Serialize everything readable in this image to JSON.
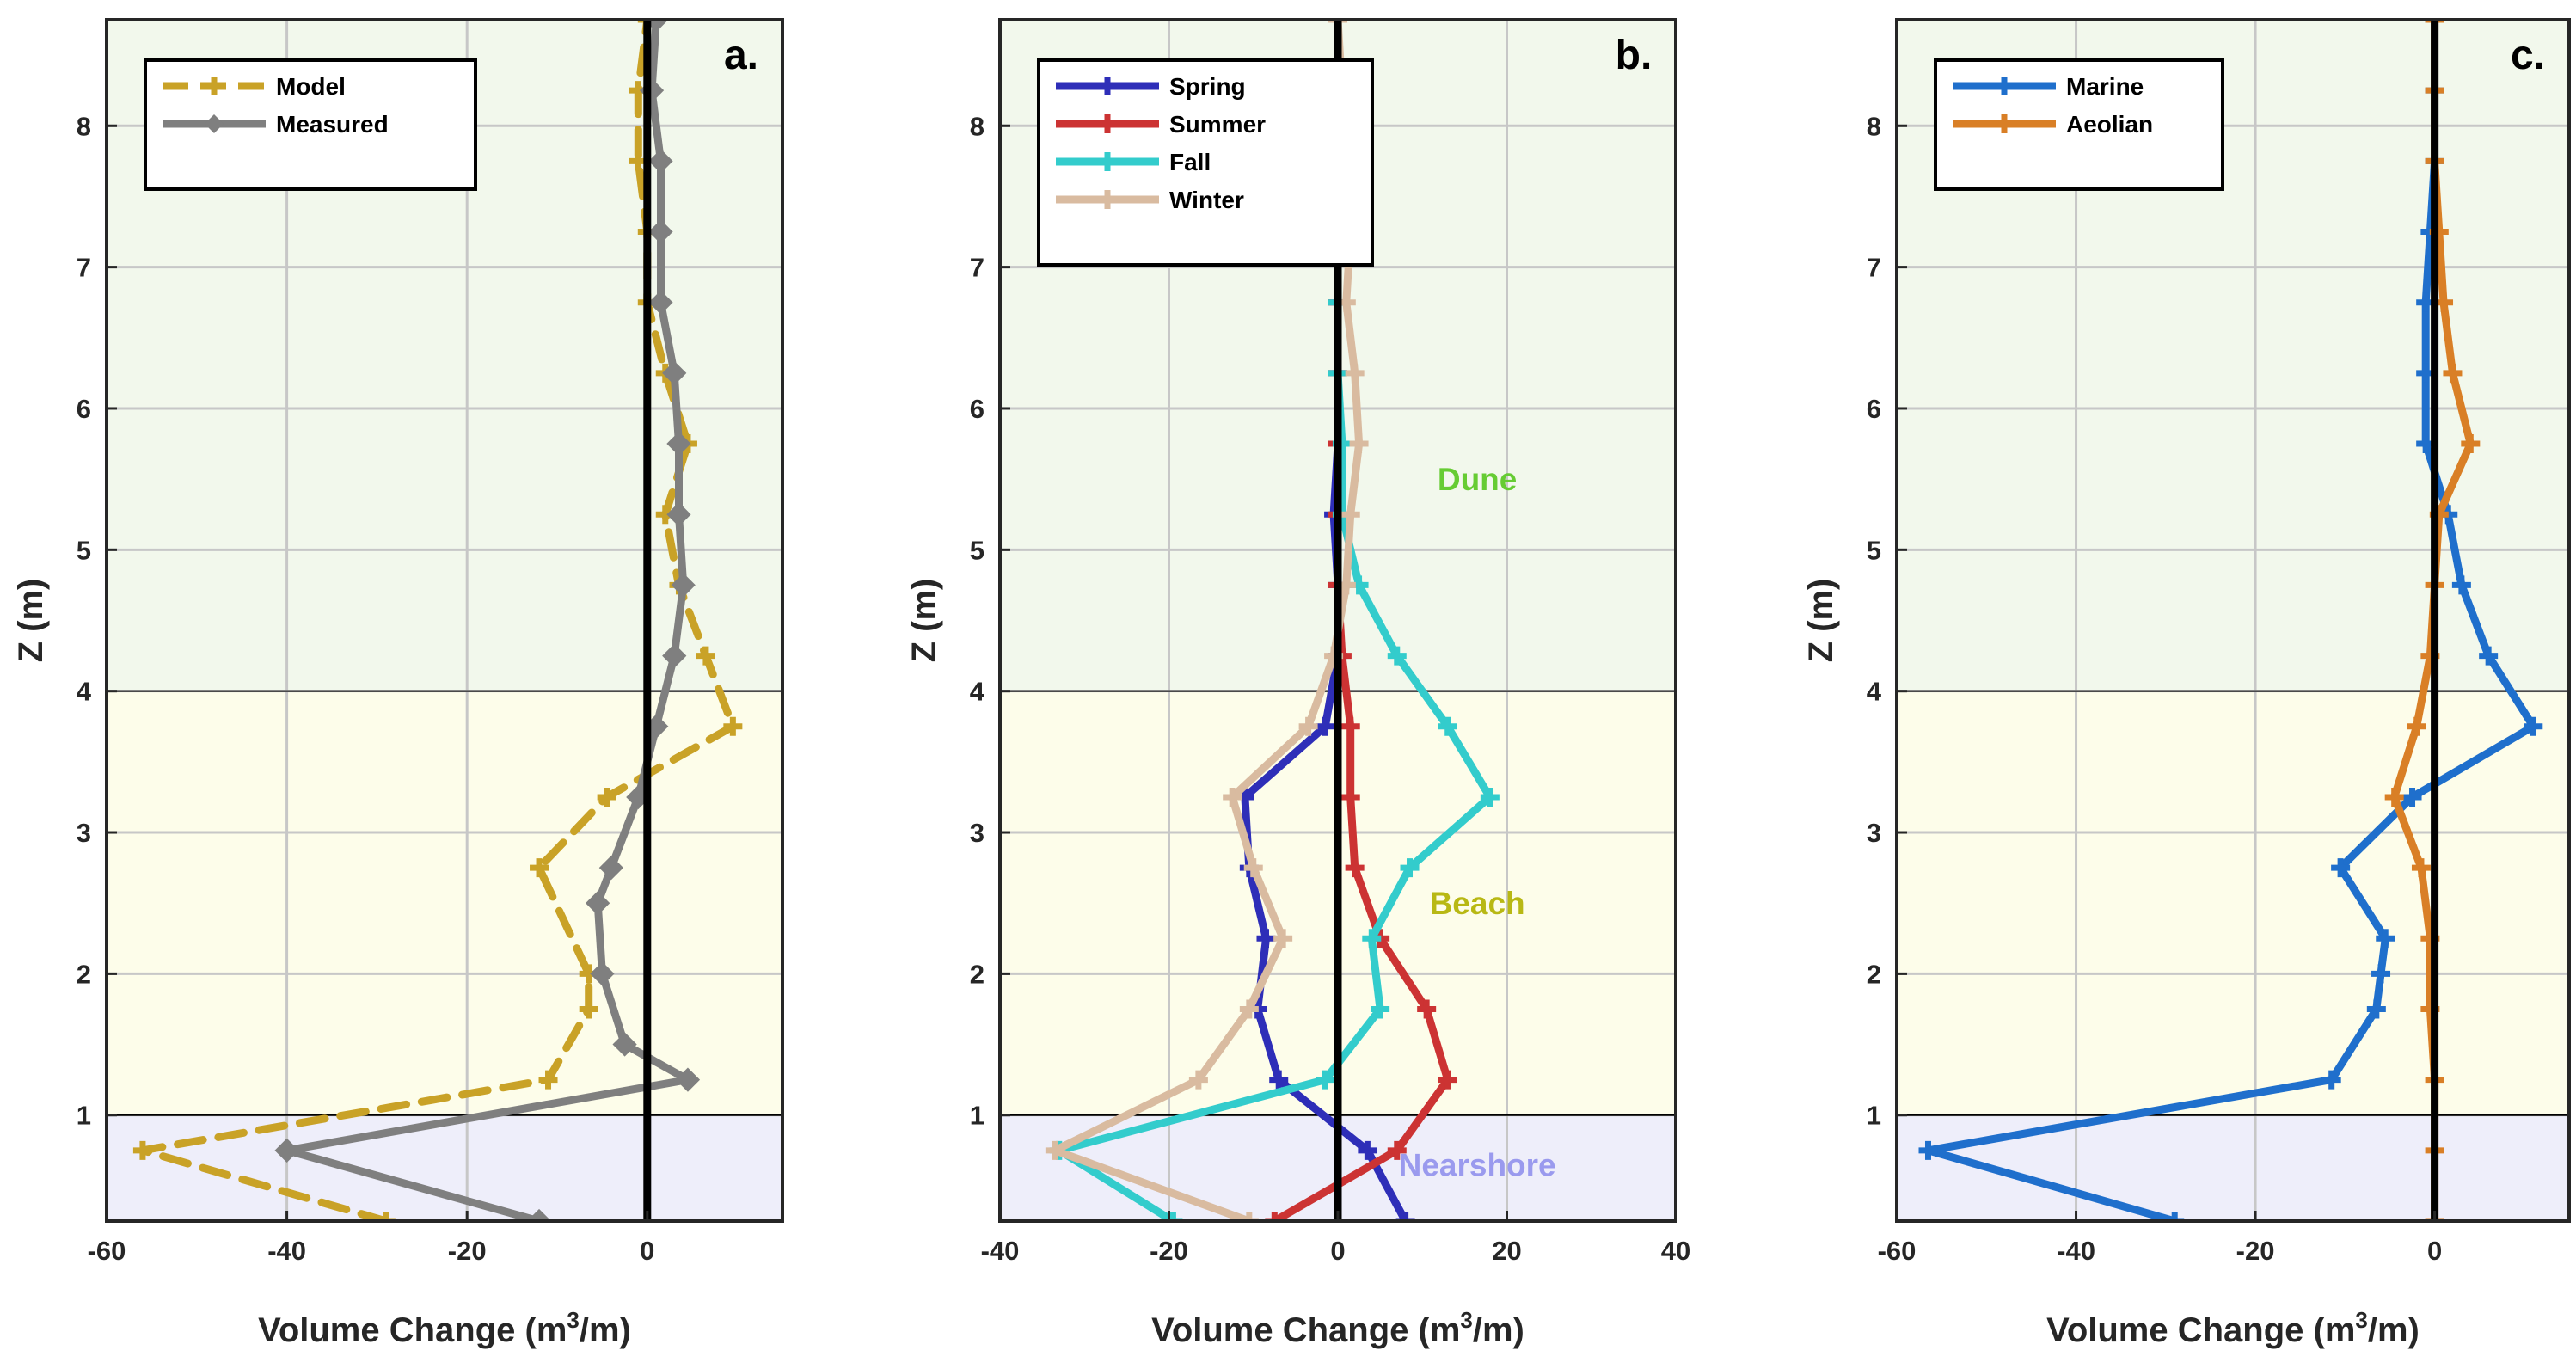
{
  "figure": {
    "xlabel_main": "Volume Change (m",
    "xlabel_sup": "3",
    "xlabel_tail": "/m)",
    "ylabel": "Z (m)"
  },
  "regions": [
    {
      "name": "Nearshore",
      "zmin": 0.25,
      "zmax": 1.0,
      "color": "#eeeefa"
    },
    {
      "name": "Beach",
      "zmin": 1.0,
      "zmax": 4.0,
      "color": "#fdfdea"
    },
    {
      "name": "Dune",
      "zmin": 4.0,
      "zmax": 8.75,
      "color": "#f2f8ec"
    }
  ],
  "region_labels": [
    {
      "text": "Dune",
      "x": 16.5,
      "z": 5.5,
      "color": "#66cc33"
    },
    {
      "text": "Beach",
      "x": 16.5,
      "z": 2.5,
      "color": "#b8b814"
    },
    {
      "text": "Nearshore",
      "x": 16.5,
      "z": 0.65,
      "color": "#9a9aee"
    }
  ],
  "chart_data": [
    {
      "type": "line",
      "panel": "a.",
      "xlim": [
        -60,
        15
      ],
      "ylim": [
        0.25,
        8.75
      ],
      "xticks": [
        -60,
        -40,
        -20,
        0
      ],
      "yticks": [
        1,
        2,
        3,
        4,
        5,
        6,
        7,
        8
      ],
      "xlabel": "Volume Change (m3/m)",
      "ylabel": "Z (m)",
      "legend_position": "top-left",
      "series": [
        {
          "name": "Model",
          "color": "#c9a227",
          "dashed": true,
          "marker": "plus",
          "z": [
            0.25,
            0.75,
            1.25,
            1.75,
            2.0,
            2.75,
            3.25,
            3.75,
            4.25,
            4.75,
            5.25,
            5.75,
            6.25,
            6.75,
            7.25,
            7.75,
            8.25,
            8.75
          ],
          "x": [
            -29,
            -56,
            -11,
            -6.5,
            -6.5,
            -12,
            -4.5,
            9.5,
            6.5,
            3.5,
            2,
            4.5,
            2,
            0,
            0,
            -1,
            -1,
            0
          ]
        },
        {
          "name": "Measured",
          "color": "#7f7f7f",
          "dashed": false,
          "marker": "diamond",
          "z": [
            0.25,
            0.75,
            1.25,
            1.5,
            2.0,
            2.5,
            2.75,
            3.25,
            3.75,
            4.25,
            4.75,
            5.25,
            5.75,
            6.25,
            6.75,
            7.25,
            7.75,
            8.25,
            8.75
          ],
          "x": [
            -12,
            -40,
            4.5,
            -2.5,
            -5,
            -5.5,
            -4,
            -1,
            1,
            3,
            4,
            3.5,
            3.5,
            3,
            1.5,
            1.5,
            1.5,
            0.5,
            1
          ]
        }
      ]
    },
    {
      "type": "line",
      "panel": "b.",
      "xlim": [
        -40,
        40
      ],
      "ylim": [
        0.25,
        8.75
      ],
      "xticks": [
        -40,
        -20,
        0,
        20,
        40
      ],
      "yticks": [
        1,
        2,
        3,
        4,
        5,
        6,
        7,
        8
      ],
      "xlabel": "Volume Change (m3/m)",
      "ylabel": "Z (m)",
      "legend_position": "top-left",
      "series": [
        {
          "name": "Spring",
          "color": "#2e2eb8",
          "dashed": false,
          "marker": "plus",
          "z": [
            0.25,
            0.75,
            1.25,
            1.75,
            2.25,
            2.75,
            3.25,
            3.75,
            4.25,
            4.75,
            5.25,
            5.75,
            6.25,
            6.75,
            7.25,
            7.75,
            8.25,
            8.75
          ],
          "x": [
            8,
            3.5,
            -7,
            -9.5,
            -8.5,
            -10.5,
            -11,
            -1.5,
            0,
            0,
            -0.5,
            0,
            0,
            0,
            0,
            0,
            0,
            0
          ]
        },
        {
          "name": "Summer",
          "color": "#cc3333",
          "dashed": false,
          "marker": "plus",
          "z": [
            0.25,
            0.75,
            1.25,
            1.75,
            2.25,
            2.75,
            3.25,
            3.75,
            4.25,
            4.75,
            5.25,
            5.75,
            6.25,
            6.75,
            7.25,
            7.75,
            8.25,
            8.75
          ],
          "x": [
            -7.5,
            7,
            13,
            10.5,
            5,
            2,
            1.5,
            1.5,
            0.5,
            0,
            0,
            0,
            0,
            0,
            0,
            0,
            0,
            0
          ]
        },
        {
          "name": "Fall",
          "color": "#33cccc",
          "dashed": false,
          "marker": "plus",
          "z": [
            0.25,
            0.75,
            1.25,
            1.75,
            2.25,
            2.75,
            3.25,
            3.75,
            4.25,
            4.75,
            5.25,
            5.75,
            6.25,
            6.75,
            7.25,
            7.75,
            8.25,
            8.75
          ],
          "x": [
            -19.5,
            -33,
            -1.5,
            5,
            4,
            8.5,
            18,
            13,
            7,
            2.5,
            0.5,
            0.5,
            0,
            0,
            0,
            0,
            0,
            0
          ]
        },
        {
          "name": "Winter",
          "color": "#d9bba0",
          "dashed": false,
          "marker": "plus",
          "z": [
            0.25,
            0.75,
            1.25,
            1.75,
            2.25,
            2.75,
            3.25,
            3.75,
            4.25,
            4.75,
            5.25,
            5.75,
            6.25,
            6.75,
            7.25,
            7.75,
            8.25,
            8.75
          ],
          "x": [
            -10.5,
            -33.5,
            -16.5,
            -10.5,
            -6.5,
            -10,
            -12.5,
            -3.5,
            -0.5,
            1,
            1.5,
            2.5,
            2,
            1,
            1.5,
            1,
            0.5,
            0
          ]
        }
      ]
    },
    {
      "type": "line",
      "panel": "c.",
      "xlim": [
        -60,
        15
      ],
      "ylim": [
        0.25,
        8.75
      ],
      "xticks": [
        -60,
        -40,
        -20,
        0
      ],
      "yticks": [
        1,
        2,
        3,
        4,
        5,
        6,
        7,
        8
      ],
      "xlabel": "Volume Change (m3/m)",
      "ylabel": "Z (m)",
      "legend_position": "top-left",
      "series": [
        {
          "name": "Marine",
          "color": "#1f6fcc",
          "dashed": false,
          "marker": "plus",
          "z": [
            0.25,
            0.75,
            1.25,
            1.75,
            2.0,
            2.25,
            2.75,
            3.25,
            3.75,
            4.25,
            4.75,
            5.25,
            5.75,
            6.25,
            6.75,
            7.25,
            7.75,
            8.25,
            8.75
          ],
          "x": [
            -29,
            -56.5,
            -11.5,
            -6.5,
            -6,
            -5.5,
            -10.5,
            -2.5,
            11,
            6,
            3,
            1.5,
            -1,
            -1,
            -1,
            -0.5,
            0,
            0,
            0
          ]
        },
        {
          "name": "Aeolian",
          "color": "#d97f26",
          "dashed": false,
          "marker": "plus",
          "z": [
            0.25,
            0.75,
            1.25,
            1.75,
            2.25,
            2.75,
            3.25,
            3.75,
            4.25,
            4.75,
            5.25,
            5.75,
            6.25,
            6.75,
            7.25,
            7.75,
            8.25,
            8.75
          ],
          "x": [
            0,
            0,
            0,
            -0.5,
            -0.5,
            -1.5,
            -4.5,
            -2,
            -0.5,
            0,
            0.5,
            4,
            2,
            1,
            0.5,
            0,
            0,
            0
          ]
        }
      ]
    }
  ]
}
